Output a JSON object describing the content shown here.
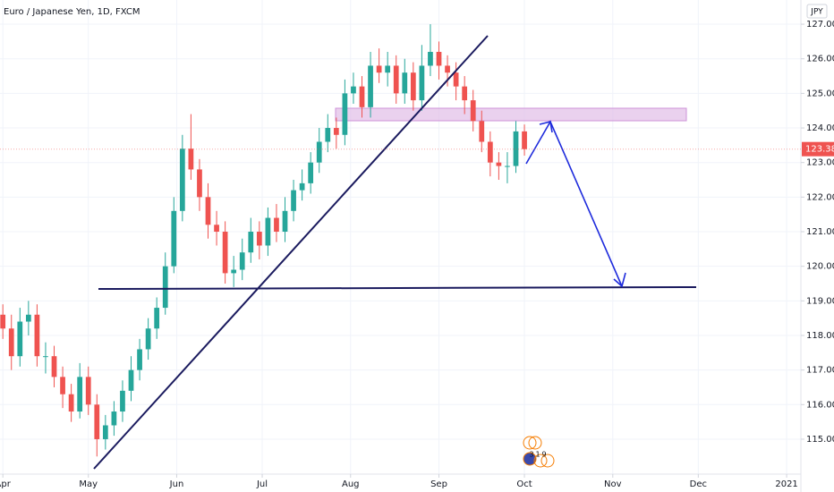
{
  "chart_data": {
    "type": "candlestick",
    "title": "Euro / Japanese Yen, 1D, FXCM",
    "currency": "JPY",
    "x": [
      0,
      3,
      6,
      9,
      12,
      15,
      18,
      21,
      24,
      27,
      30,
      33,
      36,
      39,
      42,
      45,
      48,
      51,
      54,
      57,
      60,
      63,
      66,
      69,
      72,
      75,
      78,
      81,
      84,
      87,
      90,
      93,
      96,
      99,
      102,
      105,
      108,
      111,
      114,
      117,
      120,
      123,
      126,
      129,
      132,
      135,
      138,
      141,
      144,
      147,
      150,
      153,
      156,
      159,
      162,
      165,
      168,
      171,
      174,
      177,
      180,
      183
    ],
    "open": [
      118.6,
      118.2,
      117.4,
      118.4,
      118.6,
      117.4,
      117.4,
      116.8,
      116.3,
      115.8,
      116.8,
      116.0,
      115.0,
      115.4,
      115.8,
      116.4,
      117.0,
      117.6,
      118.2,
      118.8,
      120.0,
      121.6,
      123.4,
      122.8,
      122.0,
      121.2,
      121.0,
      119.8,
      119.9,
      120.4,
      121.0,
      120.6,
      121.4,
      121.0,
      121.6,
      122.2,
      122.4,
      123.0,
      123.6,
      124.0,
      123.8,
      125.0,
      125.2,
      124.6,
      125.8,
      125.6,
      125.8,
      125.0,
      125.6,
      124.8,
      125.8,
      126.2,
      125.8,
      125.6,
      125.2,
      124.8,
      124.2,
      123.6,
      123.0,
      122.9,
      122.9,
      123.9
    ],
    "high": [
      118.9,
      118.6,
      118.8,
      119.0,
      118.9,
      117.8,
      117.7,
      117.1,
      116.6,
      117.2,
      117.1,
      116.3,
      115.7,
      116.1,
      116.7,
      117.4,
      117.9,
      118.5,
      119.1,
      120.4,
      122.0,
      123.8,
      124.4,
      123.1,
      122.4,
      121.6,
      121.3,
      120.3,
      120.8,
      121.4,
      121.3,
      121.7,
      121.8,
      122.0,
      122.5,
      122.8,
      123.3,
      124.0,
      124.4,
      124.3,
      125.4,
      125.6,
      125.5,
      126.2,
      126.3,
      126.2,
      126.1,
      126.0,
      125.9,
      126.4,
      127.0,
      126.5,
      126.1,
      125.9,
      125.5,
      125.1,
      124.5,
      123.9,
      123.3,
      123.3,
      124.2,
      124.1
    ],
    "low": [
      117.9,
      117.0,
      117.1,
      118.0,
      117.1,
      116.9,
      116.5,
      115.9,
      115.5,
      115.6,
      115.7,
      114.5,
      114.7,
      115.1,
      115.5,
      116.1,
      116.7,
      117.3,
      117.9,
      118.6,
      119.8,
      121.3,
      122.5,
      121.6,
      120.8,
      120.6,
      119.5,
      119.4,
      119.6,
      120.1,
      120.2,
      120.3,
      120.7,
      120.7,
      121.3,
      121.9,
      122.1,
      122.7,
      123.3,
      123.4,
      123.5,
      124.7,
      124.3,
      124.3,
      125.3,
      125.2,
      124.7,
      124.7,
      124.5,
      124.5,
      125.5,
      125.4,
      125.2,
      124.8,
      124.4,
      123.9,
      123.3,
      122.6,
      122.5,
      122.4,
      122.7,
      123.2
    ],
    "close": [
      118.2,
      117.4,
      118.4,
      118.6,
      117.4,
      117.4,
      116.8,
      116.3,
      115.8,
      116.8,
      116.0,
      115.0,
      115.4,
      115.8,
      116.4,
      117.0,
      117.6,
      118.2,
      118.8,
      120.0,
      121.6,
      123.4,
      122.8,
      122.0,
      121.2,
      121.0,
      119.8,
      119.9,
      120.4,
      121.0,
      120.6,
      121.4,
      121.0,
      121.6,
      122.2,
      122.4,
      123.0,
      123.6,
      124.0,
      123.8,
      125.0,
      125.2,
      124.6,
      125.8,
      125.6,
      125.8,
      125.0,
      125.6,
      124.8,
      125.8,
      126.2,
      125.8,
      125.6,
      125.2,
      124.8,
      124.2,
      123.6,
      123.0,
      122.9,
      122.9,
      123.9,
      123.388
    ],
    "up_color": "#26a69a",
    "down_color": "#ef5350",
    "last_price": 123.388,
    "xlim": [
      -1,
      280
    ],
    "xticks": [
      {
        "value": 0,
        "label": "Apr"
      },
      {
        "value": 30,
        "label": "May"
      },
      {
        "value": 61,
        "label": "Jun"
      },
      {
        "value": 91,
        "label": "Jul"
      },
      {
        "value": 122,
        "label": "Aug"
      },
      {
        "value": 153,
        "label": "Sep"
      },
      {
        "value": 183,
        "label": "Oct"
      },
      {
        "value": 214,
        "label": "Nov"
      },
      {
        "value": 244,
        "label": "Dec"
      },
      {
        "value": 275,
        "label": "2021"
      }
    ],
    "ylim": [
      113.99,
      127.7
    ],
    "yticks": [
      {
        "value": 115,
        "label": "115.000"
      },
      {
        "value": 116,
        "label": "116.000"
      },
      {
        "value": 117,
        "label": "117.000"
      },
      {
        "value": 118,
        "label": "118.000"
      },
      {
        "value": 119,
        "label": "119.000"
      },
      {
        "value": 120,
        "label": "120.000"
      },
      {
        "value": 121,
        "label": "121.000"
      },
      {
        "value": 122,
        "label": "122.000"
      },
      {
        "value": 123,
        "label": "123.000"
      },
      {
        "value": 124,
        "label": "124.000"
      },
      {
        "value": 125,
        "label": "125.000"
      },
      {
        "value": 126,
        "label": "126.000"
      },
      {
        "value": 127,
        "label": "127.000"
      }
    ],
    "grid": true,
    "event_labels": [
      "3",
      "1",
      "9"
    ]
  }
}
